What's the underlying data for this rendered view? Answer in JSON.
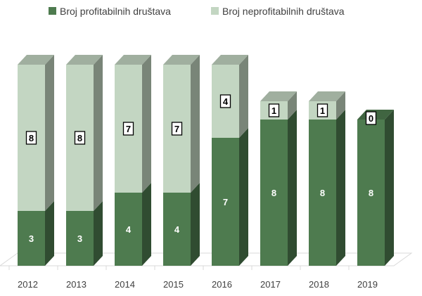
{
  "chart_data": {
    "type": "bar",
    "stacked": true,
    "three_d": true,
    "categories": [
      "2012",
      "2013",
      "2014",
      "2015",
      "2016",
      "2017",
      "2018",
      "2019"
    ],
    "series": [
      {
        "name": "Broj profitabilnih društava",
        "values": [
          3,
          3,
          4,
          4,
          7,
          8,
          8,
          8
        ],
        "color": "#4e7b4f"
      },
      {
        "name": "Broj neprofitabilnih društava",
        "values": [
          8,
          8,
          7,
          7,
          4,
          1,
          1,
          0
        ],
        "color": "#c3d6c2"
      }
    ],
    "ylim": [
      0,
      11
    ],
    "grid": false,
    "legend_position": "top"
  }
}
